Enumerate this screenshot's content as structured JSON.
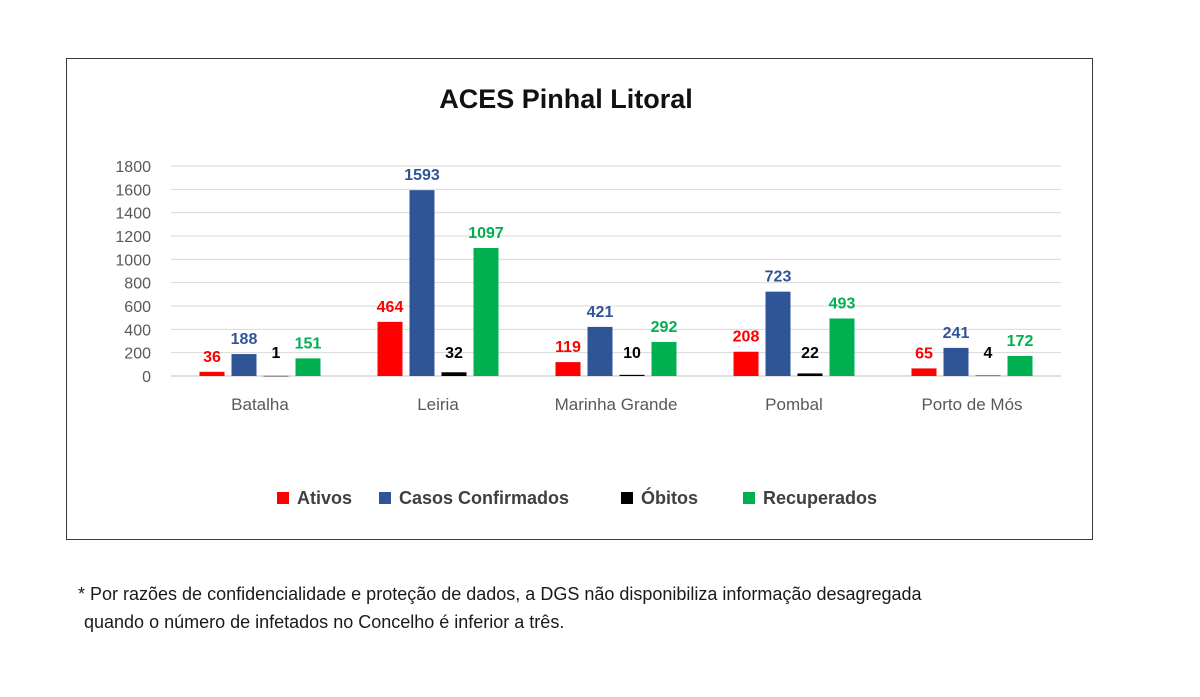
{
  "chart_data": {
    "type": "bar",
    "title": "ACES Pinhal Litoral",
    "categories": [
      "Batalha",
      "Leiria",
      "Marinha Grande",
      "Pombal",
      "Porto de Mós"
    ],
    "series": [
      {
        "name": "Ativos",
        "color": "#ff0000",
        "values": [
          36,
          464,
          119,
          208,
          65
        ]
      },
      {
        "name": "Casos Confirmados",
        "color": "#2f5597",
        "values": [
          188,
          1593,
          421,
          723,
          241
        ]
      },
      {
        "name": "Óbitos",
        "color": "#000000",
        "values": [
          1,
          32,
          10,
          22,
          4
        ]
      },
      {
        "name": "Recuperados",
        "color": "#00b050",
        "values": [
          151,
          1097,
          292,
          493,
          172
        ]
      }
    ],
    "ylim": [
      0,
      1800
    ],
    "yticks": [
      0,
      200,
      400,
      600,
      800,
      1000,
      1200,
      1400,
      1600,
      1800
    ],
    "grid": true,
    "legend_position": "bottom"
  },
  "footnote": {
    "line1": "* Por razões de confidencialidade e proteção de dados, a DGS não disponibiliza informação desagregada",
    "line2": "quando o número de infetados no Concelho é inferior a três."
  }
}
